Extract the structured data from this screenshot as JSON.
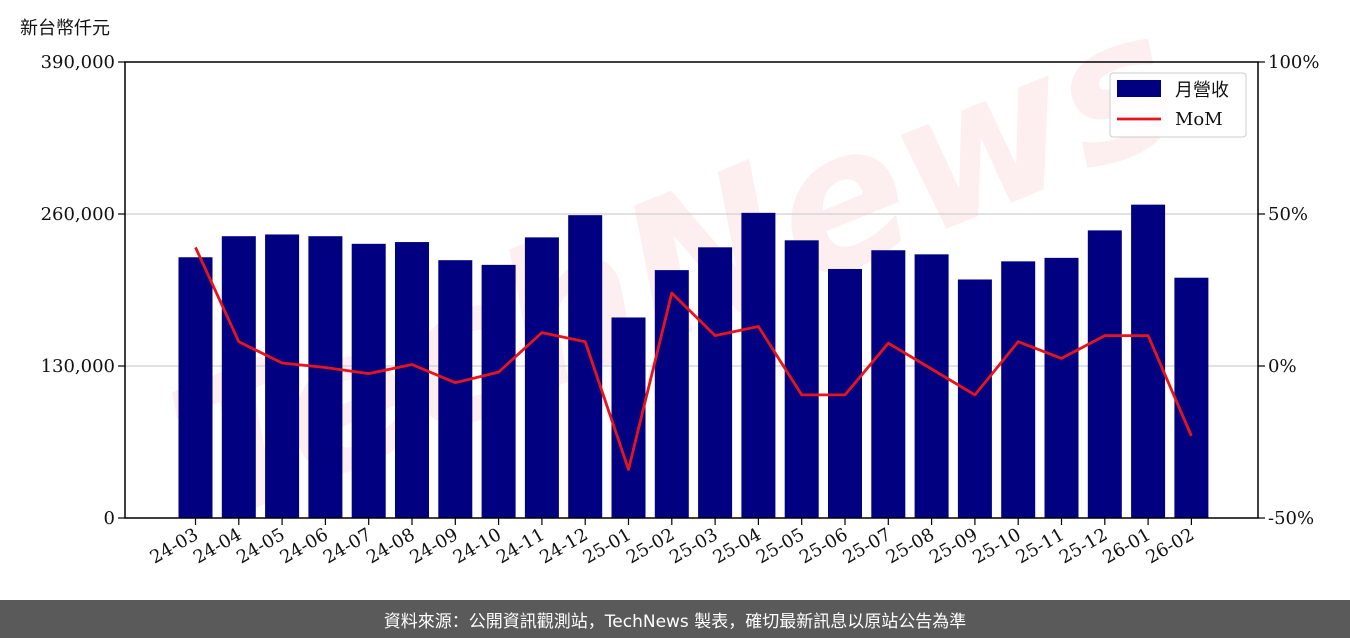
{
  "y_left_unit": "新台幣仟元",
  "footer_text": "資料來源：公開資訊觀測站，TechNews 製表，確切最新訊息以原站公告為準",
  "watermark": "TechNews",
  "colors": {
    "bar": "#000080",
    "line": "#e8141b",
    "grid": "#d0d0d0",
    "footer_bg": "#5a5a5a"
  },
  "chart_data": {
    "type": "bar+line",
    "categories": [
      "24-03",
      "24-04",
      "24-05",
      "24-06",
      "24-07",
      "24-08",
      "24-09",
      "24-10",
      "24-11",
      "24-12",
      "25-01",
      "25-02",
      "25-03",
      "25-04",
      "25-05",
      "25-06",
      "25-07",
      "25-08",
      "25-09",
      "25-10",
      "25-11",
      "25-12",
      "26-01",
      "26-02"
    ],
    "series": [
      {
        "name": "月營收",
        "type": "bar",
        "axis": "left",
        "values": [
          223000,
          241000,
          242500,
          241000,
          234500,
          236000,
          220500,
          216500,
          240000,
          259000,
          171500,
          212000,
          231500,
          261000,
          237500,
          213000,
          229000,
          225500,
          204000,
          219500,
          222500,
          246000,
          268000,
          205500
        ]
      },
      {
        "name": "MoM",
        "type": "line",
        "axis": "right",
        "unit": "%",
        "values": [
          39,
          8,
          1,
          -0.5,
          -2.5,
          0.5,
          -5.5,
          -2,
          11,
          8,
          -34,
          24,
          10,
          13,
          -9.5,
          -9.5,
          7.5,
          -1,
          -9.5,
          8,
          2.5,
          10,
          10,
          -23
        ]
      }
    ],
    "y_left": {
      "min": 0,
      "max": 390000,
      "ticks": [
        "0",
        "130,000",
        "260,000",
        "390,000"
      ],
      "tick_values": [
        0,
        130000,
        260000,
        390000
      ]
    },
    "y_right": {
      "min": -50,
      "max": 100,
      "ticks": [
        "-50%",
        "0%",
        "50%",
        "100%"
      ],
      "tick_values": [
        -50,
        0,
        50,
        100
      ]
    },
    "grid": "horizontal",
    "legend_position": "top-right"
  }
}
